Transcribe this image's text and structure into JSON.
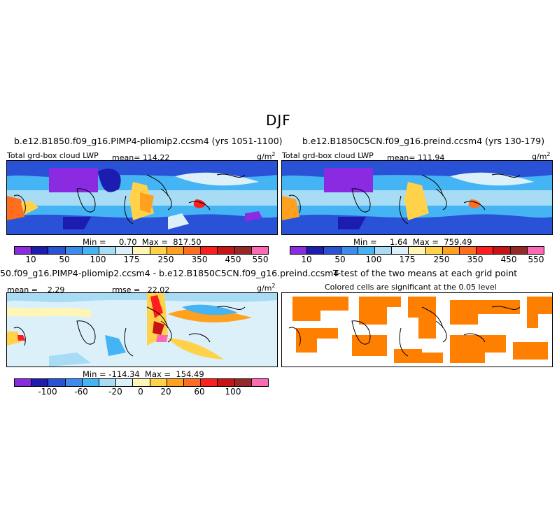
{
  "season": "DJF",
  "panels": [
    {
      "title": "b.e12.B1850.f09_g16.PIMP4-pliomip2.ccsm4 (yrs 1051-1100)",
      "subtitle": "Total grd-box cloud LWP",
      "mean_label": "mean= 114.22",
      "unit_base": "g/m",
      "unit_exp": "2",
      "minmax": "Min =     0.70  Max =  817.50"
    },
    {
      "title": "b.e12.B1850C5CN.f09_g16.preind.ccsm4 (yrs 130-179)",
      "subtitle": "Total grd-box cloud LWP",
      "mean_label": "mean= 111.94",
      "unit_base": "g/m",
      "unit_exp": "2",
      "minmax": "Min =     1.64  Max =  759.49"
    },
    {
      "title": "50.f09_g16.PIMP4-pliomip2.ccsm4 - b.e12.B1850C5CN.f09_g16.preind.ccsm4",
      "mean_label": "mean =    2.29",
      "rmse_label": "rmse =   22.02",
      "unit_base": "g/m",
      "unit_exp": "2",
      "minmax": "Min = -114.34  Max =  154.49"
    },
    {
      "title": "T-test of the two means at each grid point",
      "subtitle": "Colored cells are significant at the 0.05 level"
    }
  ],
  "chart_data": [
    {
      "type": "heatmap",
      "map": "Tropical belt, Dateline-centered (about 60S-60N)",
      "colorbar": {
        "colors": [
          "#8a2be2",
          "#1c1cb0",
          "#2a52d6",
          "#3c8cf0",
          "#45b4f5",
          "#a8dcf5",
          "#dcf0fa",
          "#fff5b4",
          "#ffd24a",
          "#ffa01e",
          "#ff6e1e",
          "#ff1e1e",
          "#c81414",
          "#962828",
          "#ff69b4"
        ],
        "ticks": [
          "10",
          "50",
          "100",
          "175",
          "250",
          "350",
          "450",
          "550"
        ]
      },
      "min": 0.7,
      "max": 817.5,
      "mean": 114.22
    },
    {
      "type": "heatmap",
      "map": "Tropical belt, Dateline-centered (about 60S-60N)",
      "colorbar": {
        "colors": [
          "#8a2be2",
          "#1c1cb0",
          "#2a52d6",
          "#3c8cf0",
          "#45b4f5",
          "#a8dcf5",
          "#dcf0fa",
          "#fff5b4",
          "#ffd24a",
          "#ffa01e",
          "#ff6e1e",
          "#ff1e1e",
          "#c81414",
          "#962828",
          "#ff69b4"
        ],
        "ticks": [
          "10",
          "50",
          "100",
          "175",
          "250",
          "350",
          "450",
          "550"
        ]
      },
      "min": 1.64,
      "max": 759.49,
      "mean": 111.94
    },
    {
      "type": "heatmap",
      "map": "Tropical belt, Dateline-centered (about 60S-60N)",
      "colorbar": {
        "colors": [
          "#8a2be2",
          "#1c1cb0",
          "#2a52d6",
          "#3c8cf0",
          "#45b4f5",
          "#a8dcf5",
          "#dcf0fa",
          "#fff5b4",
          "#ffd24a",
          "#ffa01e",
          "#ff6e1e",
          "#ff1e1e",
          "#c81414",
          "#962828",
          "#ff69b4"
        ],
        "ticks": [
          "-100",
          "-60",
          "-20",
          "0",
          "20",
          "60",
          "100"
        ]
      },
      "min": -114.34,
      "max": 154.49,
      "mean": 2.29,
      "rmse": 22.02
    },
    {
      "type": "heatmap",
      "map": "Tropical belt, Dateline-centered (about 60S-60N)",
      "significance_color": "#ff7f00"
    }
  ]
}
